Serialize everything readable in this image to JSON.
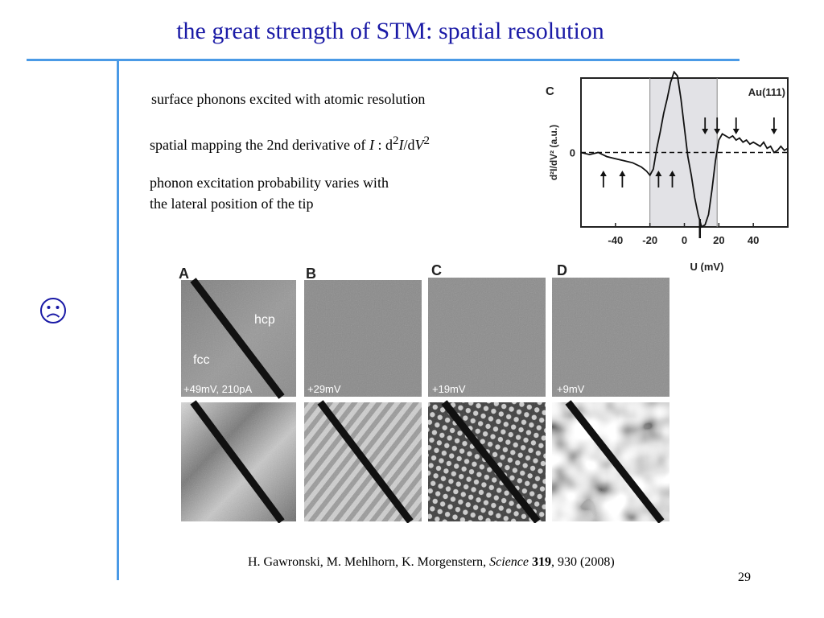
{
  "slide": {
    "title": "the great strength of STM: spatial resolution",
    "page_number": "29",
    "bullets": {
      "b1": "surface phonons excited with atomic resolution",
      "b2_text": "spatial mapping the 2nd derivative of",
      "b2_var": "I",
      "b2_colon": " :  d",
      "b2_sup": "2",
      "b2_I": "I",
      "b2_dv": "/d",
      "b2_V": "V",
      "b2_sup2": "2",
      "b3_line1": "phonon excitation probability varies with",
      "b3_line2": "the lateral position of the tip"
    },
    "reference": {
      "authors": "H. Gawronski, M. Mehlhorn, K. Morgenstern, ",
      "journal": "Science",
      "volume": " 319",
      "rest": ", 930 (2008)"
    },
    "icon": "sad-face-icon",
    "accent_color": "#4a9ae6",
    "title_color": "#1a1aa6"
  },
  "chart_data": {
    "type": "line",
    "panel_label": "C",
    "title": "Au(111)",
    "xlabel": "U (mV)",
    "ylabel": "d²I/dV² (a.u.)",
    "xlim": [
      -60,
      60
    ],
    "ylim": [
      -1.8,
      1.8
    ],
    "x_ticks": [
      "-40",
      "-20",
      "0",
      "20",
      "40"
    ],
    "y_tick_label": "0",
    "shaded_range": [
      -20,
      19
    ],
    "marker_at": 9,
    "up_arrows_x": [
      -47,
      -36,
      -15,
      -7
    ],
    "down_arrows_x": [
      12,
      19,
      30,
      52
    ],
    "x": [
      -60,
      -55,
      -50,
      -45,
      -40,
      -35,
      -30,
      -25,
      -22,
      -20,
      -18,
      -16,
      -14,
      -12,
      -10,
      -8,
      -6,
      -4,
      -2,
      0,
      2,
      4,
      6,
      8,
      10,
      12,
      14,
      16,
      18,
      20,
      22,
      24,
      26,
      28,
      30,
      32,
      34,
      36,
      38,
      40,
      42,
      44,
      46,
      48,
      50,
      52,
      54,
      56,
      58,
      60
    ],
    "y": [
      0.0,
      -0.05,
      0.0,
      -0.1,
      -0.15,
      -0.2,
      -0.25,
      -0.35,
      -0.45,
      -0.55,
      -0.4,
      0.1,
      0.5,
      0.95,
      1.3,
      1.7,
      1.95,
      1.85,
      1.3,
      0.6,
      -0.1,
      -0.55,
      -1.1,
      -1.5,
      -1.8,
      -1.75,
      -1.5,
      -0.9,
      -0.2,
      0.3,
      0.45,
      0.4,
      0.35,
      0.4,
      0.3,
      0.35,
      0.25,
      0.3,
      0.2,
      0.25,
      0.2,
      0.15,
      0.25,
      0.1,
      0.15,
      0.0,
      0.05,
      0.15,
      0.05,
      0.1
    ]
  },
  "images": {
    "panels": [
      {
        "label": "A",
        "caption": "+49mV, 210pA",
        "hcp": "hcp",
        "fcc": "fcc"
      },
      {
        "label": "B",
        "caption": "+29mV"
      },
      {
        "label": "C",
        "caption": "+19mV"
      },
      {
        "label": "D",
        "caption": "+9mV"
      }
    ]
  }
}
